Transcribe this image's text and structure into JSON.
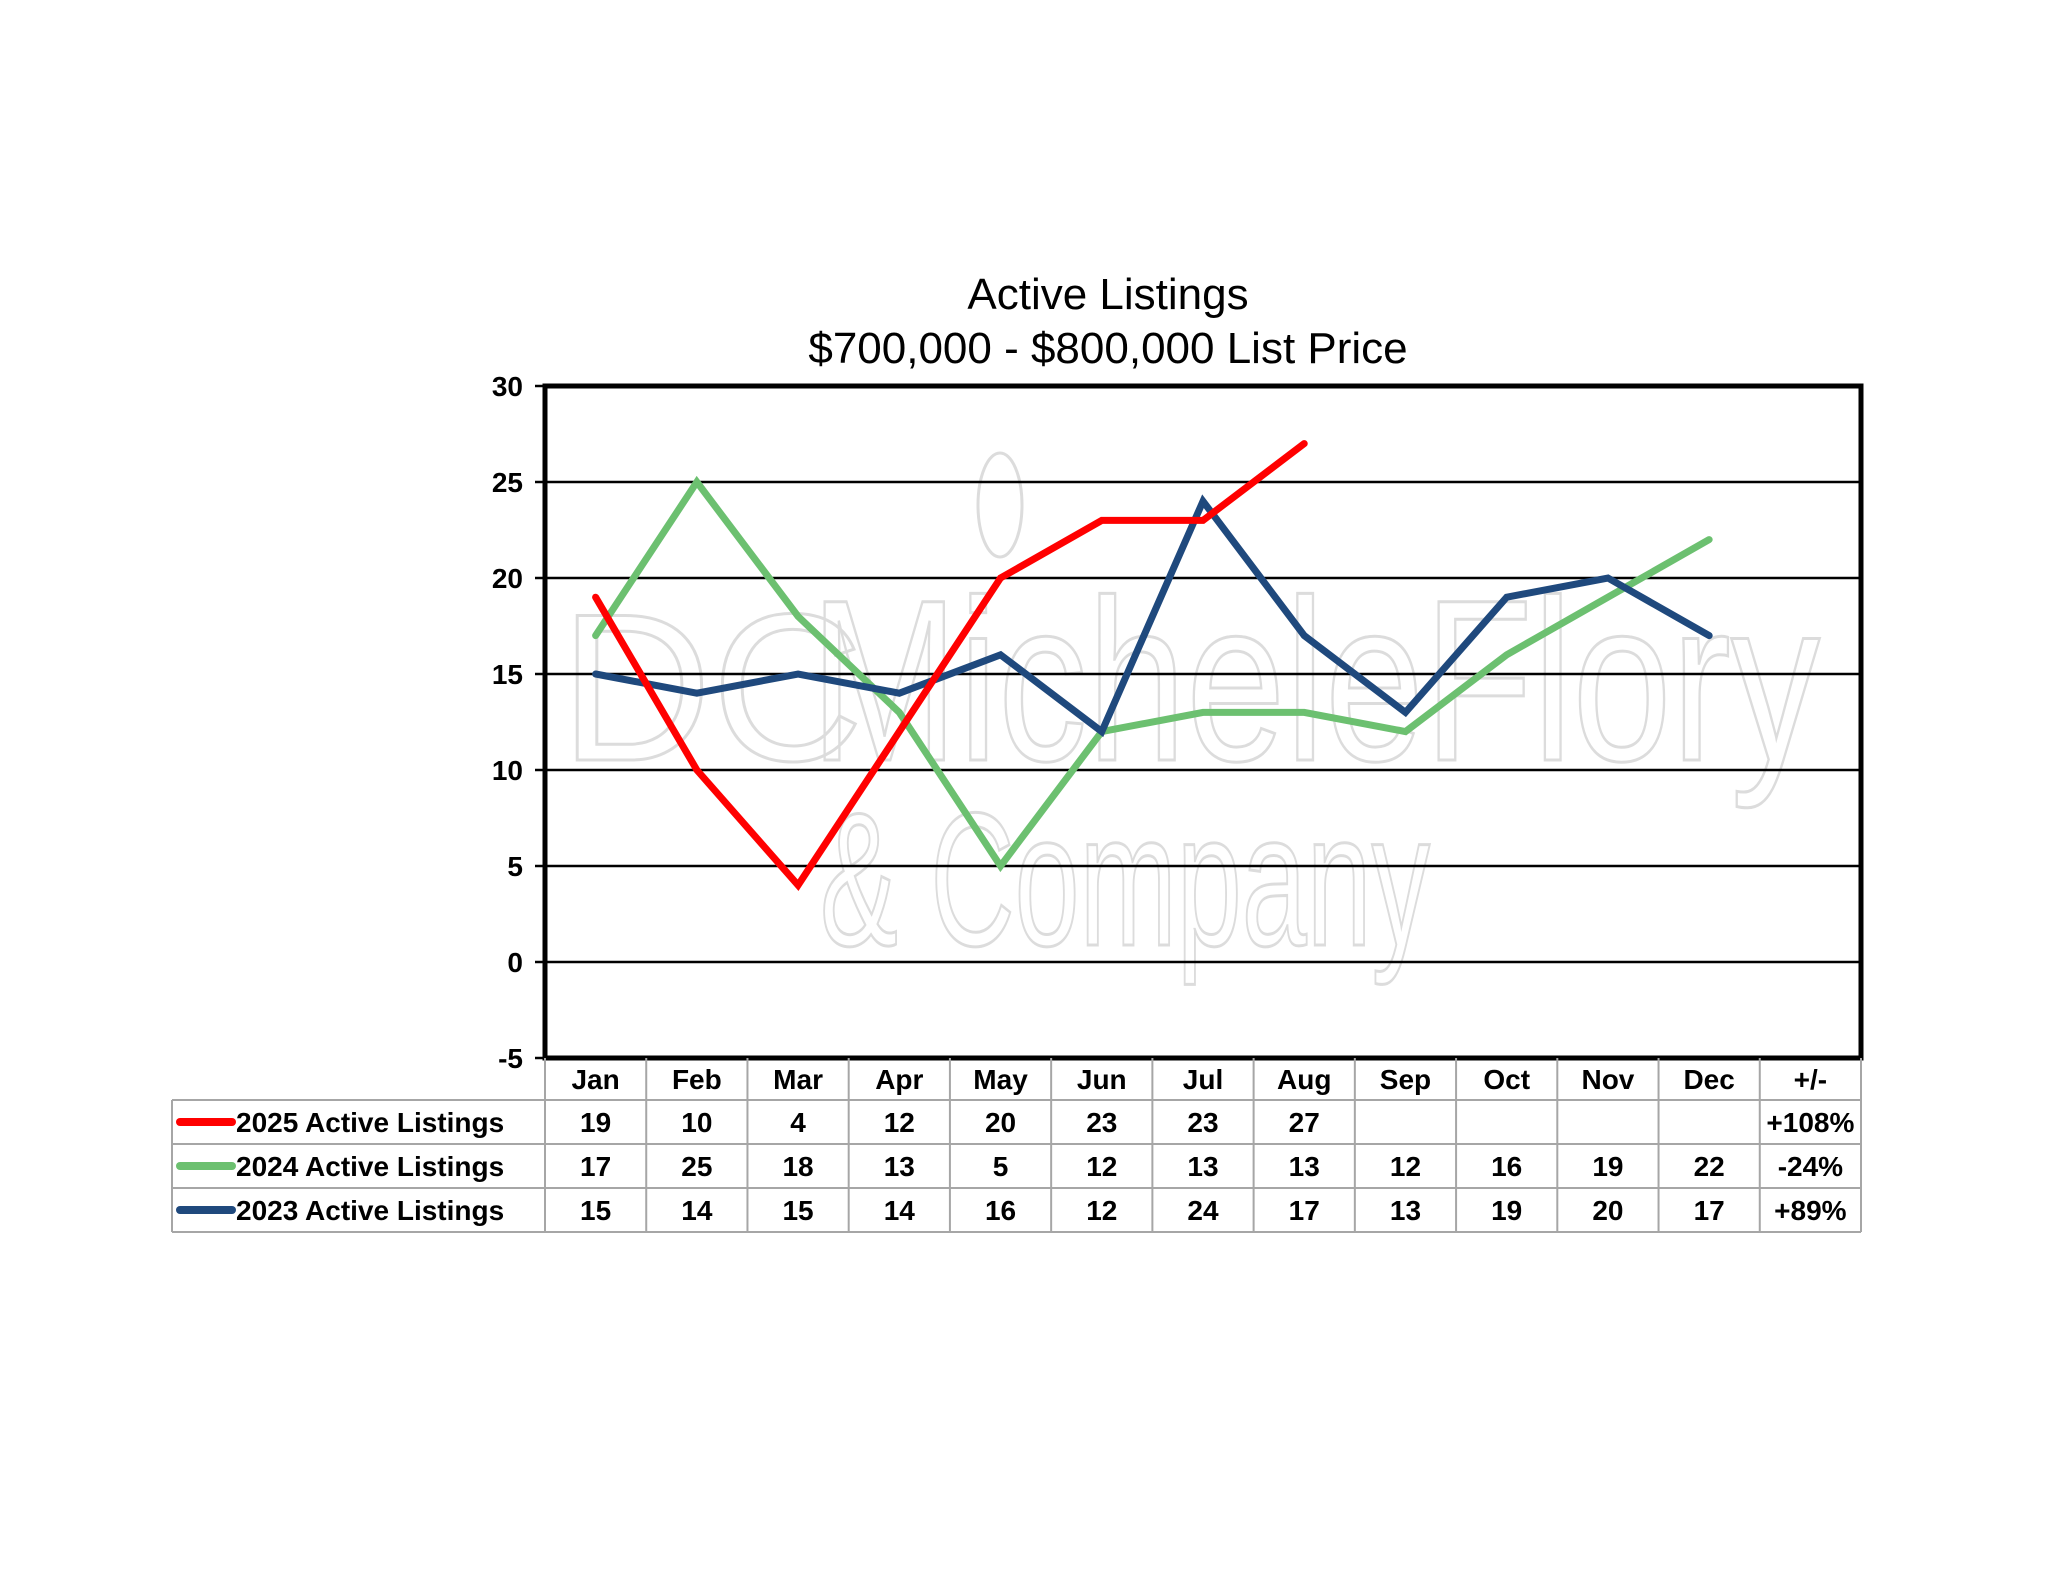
{
  "chart_data": {
    "type": "line",
    "title": "Active Listings",
    "subtitle": "$700,000 - $800,000 List Price",
    "categories": [
      "Jan",
      "Feb",
      "Mar",
      "Apr",
      "May",
      "Jun",
      "Jul",
      "Aug",
      "Sep",
      "Oct",
      "Nov",
      "Dec"
    ],
    "change_header": "+/-",
    "ylim": [
      -5,
      30
    ],
    "yticks": [
      30,
      25,
      20,
      15,
      10,
      5,
      0,
      -5
    ],
    "grid": true,
    "legend": "data-table-below",
    "series": [
      {
        "name": "2025 Active Listings",
        "color": "#ff0000",
        "values": [
          19,
          10,
          4,
          12,
          20,
          23,
          23,
          27,
          null,
          null,
          null,
          null
        ],
        "change": "+108%"
      },
      {
        "name": "2024 Active Listings",
        "color": "#6cc070",
        "values": [
          17,
          25,
          18,
          13,
          5,
          12,
          13,
          13,
          12,
          16,
          19,
          22
        ],
        "change": "-24%"
      },
      {
        "name": "2023 Active Listings",
        "color": "#1f497d",
        "values": [
          15,
          14,
          15,
          14,
          16,
          12,
          24,
          17,
          13,
          19,
          20,
          17
        ],
        "change": "+89%"
      }
    ]
  },
  "watermark": {
    "line1": "MicheleFlory",
    "line2": "& Company",
    "monogram": "DC"
  }
}
